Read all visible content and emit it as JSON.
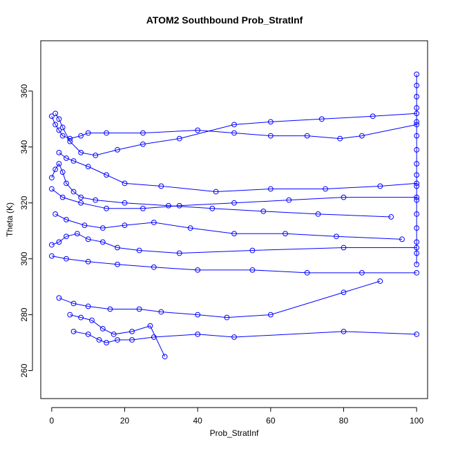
{
  "chart_data": {
    "type": "scatter",
    "title": "ATOM2 Southbound Prob_StratInf",
    "xlabel": "Prob_StratInf",
    "ylabel": "Theta (K)",
    "xlim": [
      -3,
      103
    ],
    "ylim": [
      250,
      378
    ],
    "xticks": [
      0,
      20,
      40,
      60,
      80,
      100
    ],
    "yticks": [
      260,
      280,
      300,
      320,
      340,
      360
    ],
    "grid": false,
    "color": "#0000ff",
    "series": [
      {
        "values": [
          {
            "x": 0,
            "y": 351
          },
          {
            "x": 1,
            "y": 348
          },
          {
            "x": 2,
            "y": 346
          },
          {
            "x": 3,
            "y": 344
          },
          {
            "x": 5,
            "y": 343
          },
          {
            "x": 8,
            "y": 344
          },
          {
            "x": 10,
            "y": 345
          },
          {
            "x": 15,
            "y": 345
          },
          {
            "x": 25,
            "y": 345
          },
          {
            "x": 40,
            "y": 346
          },
          {
            "x": 50,
            "y": 345
          },
          {
            "x": 60,
            "y": 344
          },
          {
            "x": 70,
            "y": 344
          },
          {
            "x": 79,
            "y": 343
          },
          {
            "x": 85,
            "y": 344
          },
          {
            "x": 100,
            "y": 348
          }
        ]
      },
      {
        "values": [
          {
            "x": 1,
            "y": 352
          },
          {
            "x": 2,
            "y": 350
          },
          {
            "x": 3,
            "y": 347
          },
          {
            "x": 5,
            "y": 342
          },
          {
            "x": 8,
            "y": 338
          },
          {
            "x": 12,
            "y": 337
          },
          {
            "x": 18,
            "y": 339
          },
          {
            "x": 25,
            "y": 341
          },
          {
            "x": 35,
            "y": 343
          },
          {
            "x": 50,
            "y": 348
          },
          {
            "x": 60,
            "y": 349
          },
          {
            "x": 74,
            "y": 350
          },
          {
            "x": 88,
            "y": 351
          },
          {
            "x": 100,
            "y": 352
          }
        ]
      },
      {
        "values": [
          {
            "x": 2,
            "y": 338
          },
          {
            "x": 4,
            "y": 336
          },
          {
            "x": 6,
            "y": 335
          },
          {
            "x": 10,
            "y": 333
          },
          {
            "x": 15,
            "y": 330
          },
          {
            "x": 20,
            "y": 327
          },
          {
            "x": 30,
            "y": 326
          },
          {
            "x": 45,
            "y": 324
          },
          {
            "x": 60,
            "y": 325
          },
          {
            "x": 75,
            "y": 325
          },
          {
            "x": 90,
            "y": 326
          },
          {
            "x": 100,
            "y": 327
          }
        ]
      },
      {
        "values": [
          {
            "x": 0,
            "y": 325
          },
          {
            "x": 3,
            "y": 322
          },
          {
            "x": 8,
            "y": 320
          },
          {
            "x": 15,
            "y": 318
          },
          {
            "x": 25,
            "y": 318
          },
          {
            "x": 35,
            "y": 319
          },
          {
            "x": 50,
            "y": 320
          },
          {
            "x": 65,
            "y": 321
          },
          {
            "x": 80,
            "y": 322
          },
          {
            "x": 100,
            "y": 322
          }
        ]
      },
      {
        "values": [
          {
            "x": 1,
            "y": 316
          },
          {
            "x": 4,
            "y": 314
          },
          {
            "x": 9,
            "y": 312
          },
          {
            "x": 14,
            "y": 311
          },
          {
            "x": 20,
            "y": 312
          },
          {
            "x": 28,
            "y": 313
          },
          {
            "x": 38,
            "y": 311
          },
          {
            "x": 50,
            "y": 309
          },
          {
            "x": 64,
            "y": 309
          },
          {
            "x": 78,
            "y": 308
          },
          {
            "x": 96,
            "y": 307
          }
        ]
      },
      {
        "values": [
          {
            "x": 0,
            "y": 301
          },
          {
            "x": 4,
            "y": 300
          },
          {
            "x": 10,
            "y": 299
          },
          {
            "x": 18,
            "y": 298
          },
          {
            "x": 28,
            "y": 297
          },
          {
            "x": 40,
            "y": 296
          },
          {
            "x": 55,
            "y": 296
          },
          {
            "x": 70,
            "y": 295
          },
          {
            "x": 85,
            "y": 295
          },
          {
            "x": 100,
            "y": 295
          }
        ]
      },
      {
        "values": [
          {
            "x": 2,
            "y": 286
          },
          {
            "x": 6,
            "y": 284
          },
          {
            "x": 10,
            "y": 283
          },
          {
            "x": 16,
            "y": 282
          },
          {
            "x": 24,
            "y": 282
          },
          {
            "x": 30,
            "y": 281
          },
          {
            "x": 40,
            "y": 280
          },
          {
            "x": 48,
            "y": 279
          },
          {
            "x": 60,
            "y": 280
          },
          {
            "x": 80,
            "y": 288
          },
          {
            "x": 90,
            "y": 292
          }
        ]
      },
      {
        "values": [
          {
            "x": 6,
            "y": 274
          },
          {
            "x": 10,
            "y": 273
          },
          {
            "x": 13,
            "y": 271
          },
          {
            "x": 15,
            "y": 270
          },
          {
            "x": 18,
            "y": 271
          },
          {
            "x": 22,
            "y": 271
          },
          {
            "x": 28,
            "y": 272
          },
          {
            "x": 40,
            "y": 273
          },
          {
            "x": 50,
            "y": 272
          },
          {
            "x": 80,
            "y": 274
          },
          {
            "x": 100,
            "y": 273
          }
        ]
      },
      {
        "values": [
          {
            "x": 5,
            "y": 280
          },
          {
            "x": 8,
            "y": 279
          },
          {
            "x": 11,
            "y": 278
          },
          {
            "x": 14,
            "y": 275
          },
          {
            "x": 17,
            "y": 273
          },
          {
            "x": 22,
            "y": 274
          },
          {
            "x": 27,
            "y": 276
          },
          {
            "x": 31,
            "y": 265
          }
        ]
      },
      {
        "values": [
          {
            "x": 0,
            "y": 305
          },
          {
            "x": 2,
            "y": 306
          },
          {
            "x": 4,
            "y": 308
          },
          {
            "x": 7,
            "y": 309
          },
          {
            "x": 10,
            "y": 307
          },
          {
            "x": 14,
            "y": 306
          },
          {
            "x": 18,
            "y": 304
          },
          {
            "x": 24,
            "y": 303
          },
          {
            "x": 35,
            "y": 302
          },
          {
            "x": 55,
            "y": 303
          },
          {
            "x": 80,
            "y": 304
          },
          {
            "x": 100,
            "y": 304
          }
        ]
      },
      {
        "values": [
          {
            "x": 100,
            "y": 366
          },
          {
            "x": 100,
            "y": 362
          },
          {
            "x": 100,
            "y": 358
          },
          {
            "x": 100,
            "y": 354
          },
          {
            "x": 100,
            "y": 349
          },
          {
            "x": 100,
            "y": 344
          },
          {
            "x": 100,
            "y": 339
          },
          {
            "x": 100,
            "y": 334
          },
          {
            "x": 100,
            "y": 330
          },
          {
            "x": 100,
            "y": 326
          },
          {
            "x": 100,
            "y": 321
          },
          {
            "x": 100,
            "y": 316
          },
          {
            "x": 100,
            "y": 311
          },
          {
            "x": 100,
            "y": 306
          },
          {
            "x": 100,
            "y": 302
          },
          {
            "x": 100,
            "y": 298
          }
        ]
      },
      {
        "values": [
          {
            "x": 0,
            "y": 329
          },
          {
            "x": 1,
            "y": 332
          },
          {
            "x": 2,
            "y": 334
          },
          {
            "x": 3,
            "y": 331
          },
          {
            "x": 4,
            "y": 327
          },
          {
            "x": 6,
            "y": 324
          },
          {
            "x": 8,
            "y": 322
          },
          {
            "x": 12,
            "y": 321
          },
          {
            "x": 20,
            "y": 320
          },
          {
            "x": 32,
            "y": 319
          },
          {
            "x": 44,
            "y": 318
          },
          {
            "x": 58,
            "y": 317
          },
          {
            "x": 73,
            "y": 316
          },
          {
            "x": 93,
            "y": 315
          }
        ]
      }
    ]
  }
}
